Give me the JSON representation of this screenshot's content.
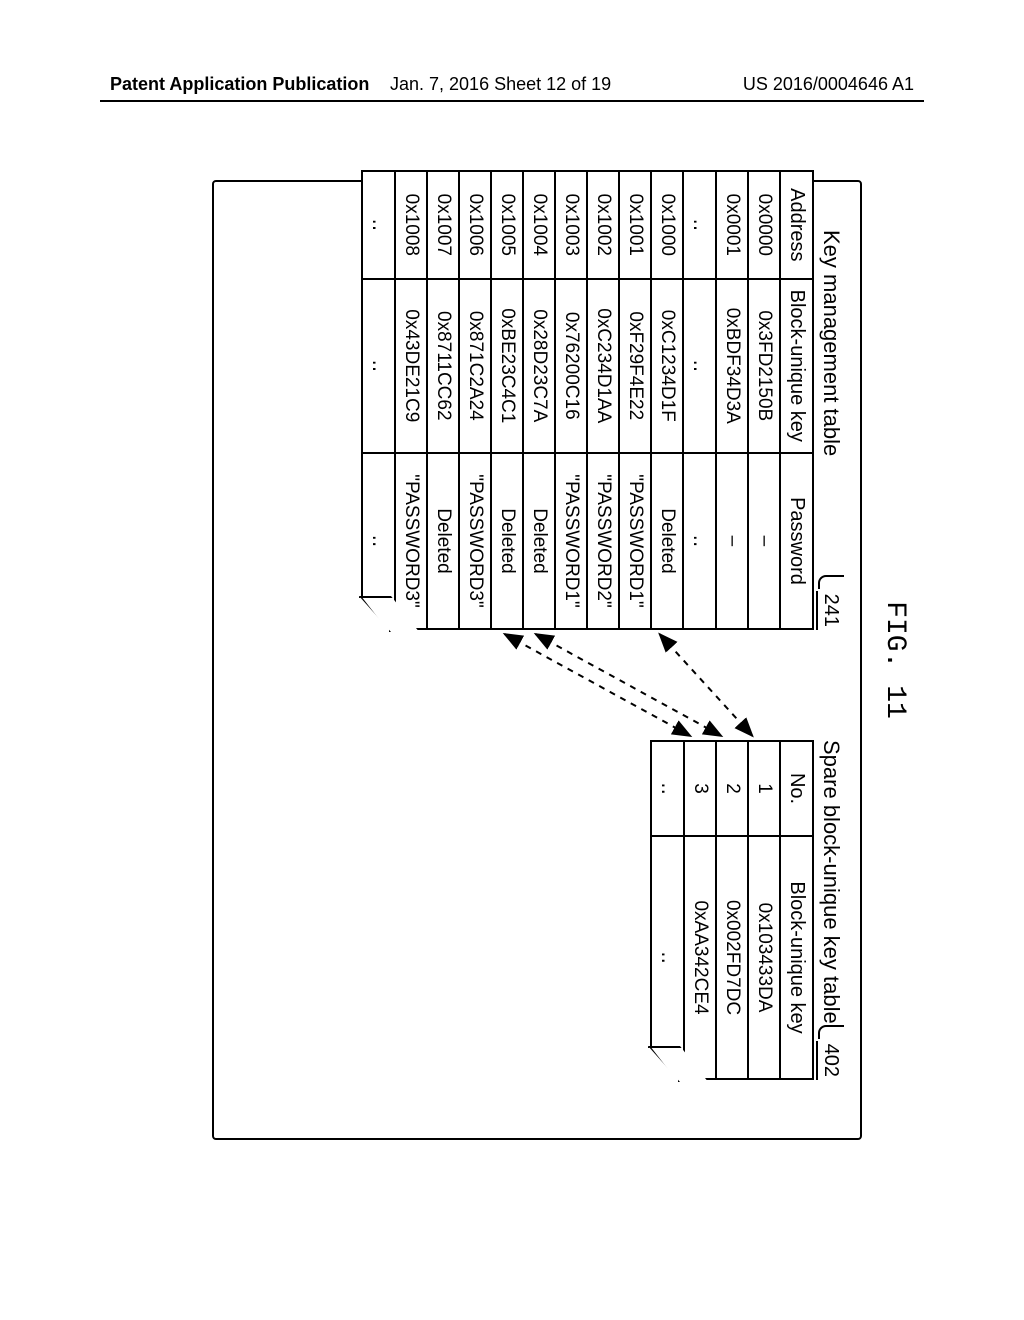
{
  "header": {
    "left": "Patent Application Publication",
    "center": "Jan. 7, 2016   Sheet 12 of 19",
    "right": "US 2016/0004646 A1"
  },
  "figure": {
    "label": "FIG. 11",
    "kmt": {
      "title": "Key management table",
      "callout": "241",
      "columns": [
        "Address",
        "Block-unique key",
        "Password"
      ],
      "rows": [
        [
          "0x0000",
          "0x3FD2150B",
          "–"
        ],
        [
          "0x0001",
          "0xBDF34D3A",
          "–"
        ],
        [
          "‥",
          "‥",
          "‥"
        ],
        [
          "0x1000",
          "0xC1234D1F",
          "Deleted"
        ],
        [
          "0x1001",
          "0xF29F4E22",
          "\"PASSWORD1\""
        ],
        [
          "0x1002",
          "0xC234D1AA",
          "\"PASSWORD2\""
        ],
        [
          "0x1003",
          "0x76200C16",
          "\"PASSWORD1\""
        ],
        [
          "0x1004",
          "0x28D23C7A",
          "Deleted"
        ],
        [
          "0x1005",
          "0xBE23C4C1",
          "Deleted"
        ],
        [
          "0x1006",
          "0x871C2A24",
          "\"PASSWORD3\""
        ],
        [
          "0x1007",
          "0x8711CC62",
          "Deleted"
        ],
        [
          "0x1008",
          "0x43DE21C9",
          "\"PASSWORD3\""
        ],
        [
          "‥",
          "‥",
          "‥"
        ]
      ]
    },
    "spare": {
      "title": "Spare block-unique key table",
      "callout": "402",
      "columns": [
        "No.",
        "Block-unique key"
      ],
      "rows": [
        [
          "1",
          "0x103433DA"
        ],
        [
          "2",
          "0x002FD7DC"
        ],
        [
          "3",
          "0xAA342CE4"
        ],
        [
          "‥",
          "‥"
        ]
      ]
    },
    "arrows": [
      {
        "from_row": 3,
        "to_row": 0
      },
      {
        "from_row": 7,
        "to_row": 1
      },
      {
        "from_row": 8,
        "to_row": 2
      }
    ],
    "style": {
      "border_color": "#000000",
      "background": "#ffffff",
      "font_family": "Arial",
      "table_fontsize": 19,
      "title_fontsize": 22,
      "fig_label_fontsize": 28,
      "line_width": 2,
      "dash": "6 6"
    }
  }
}
